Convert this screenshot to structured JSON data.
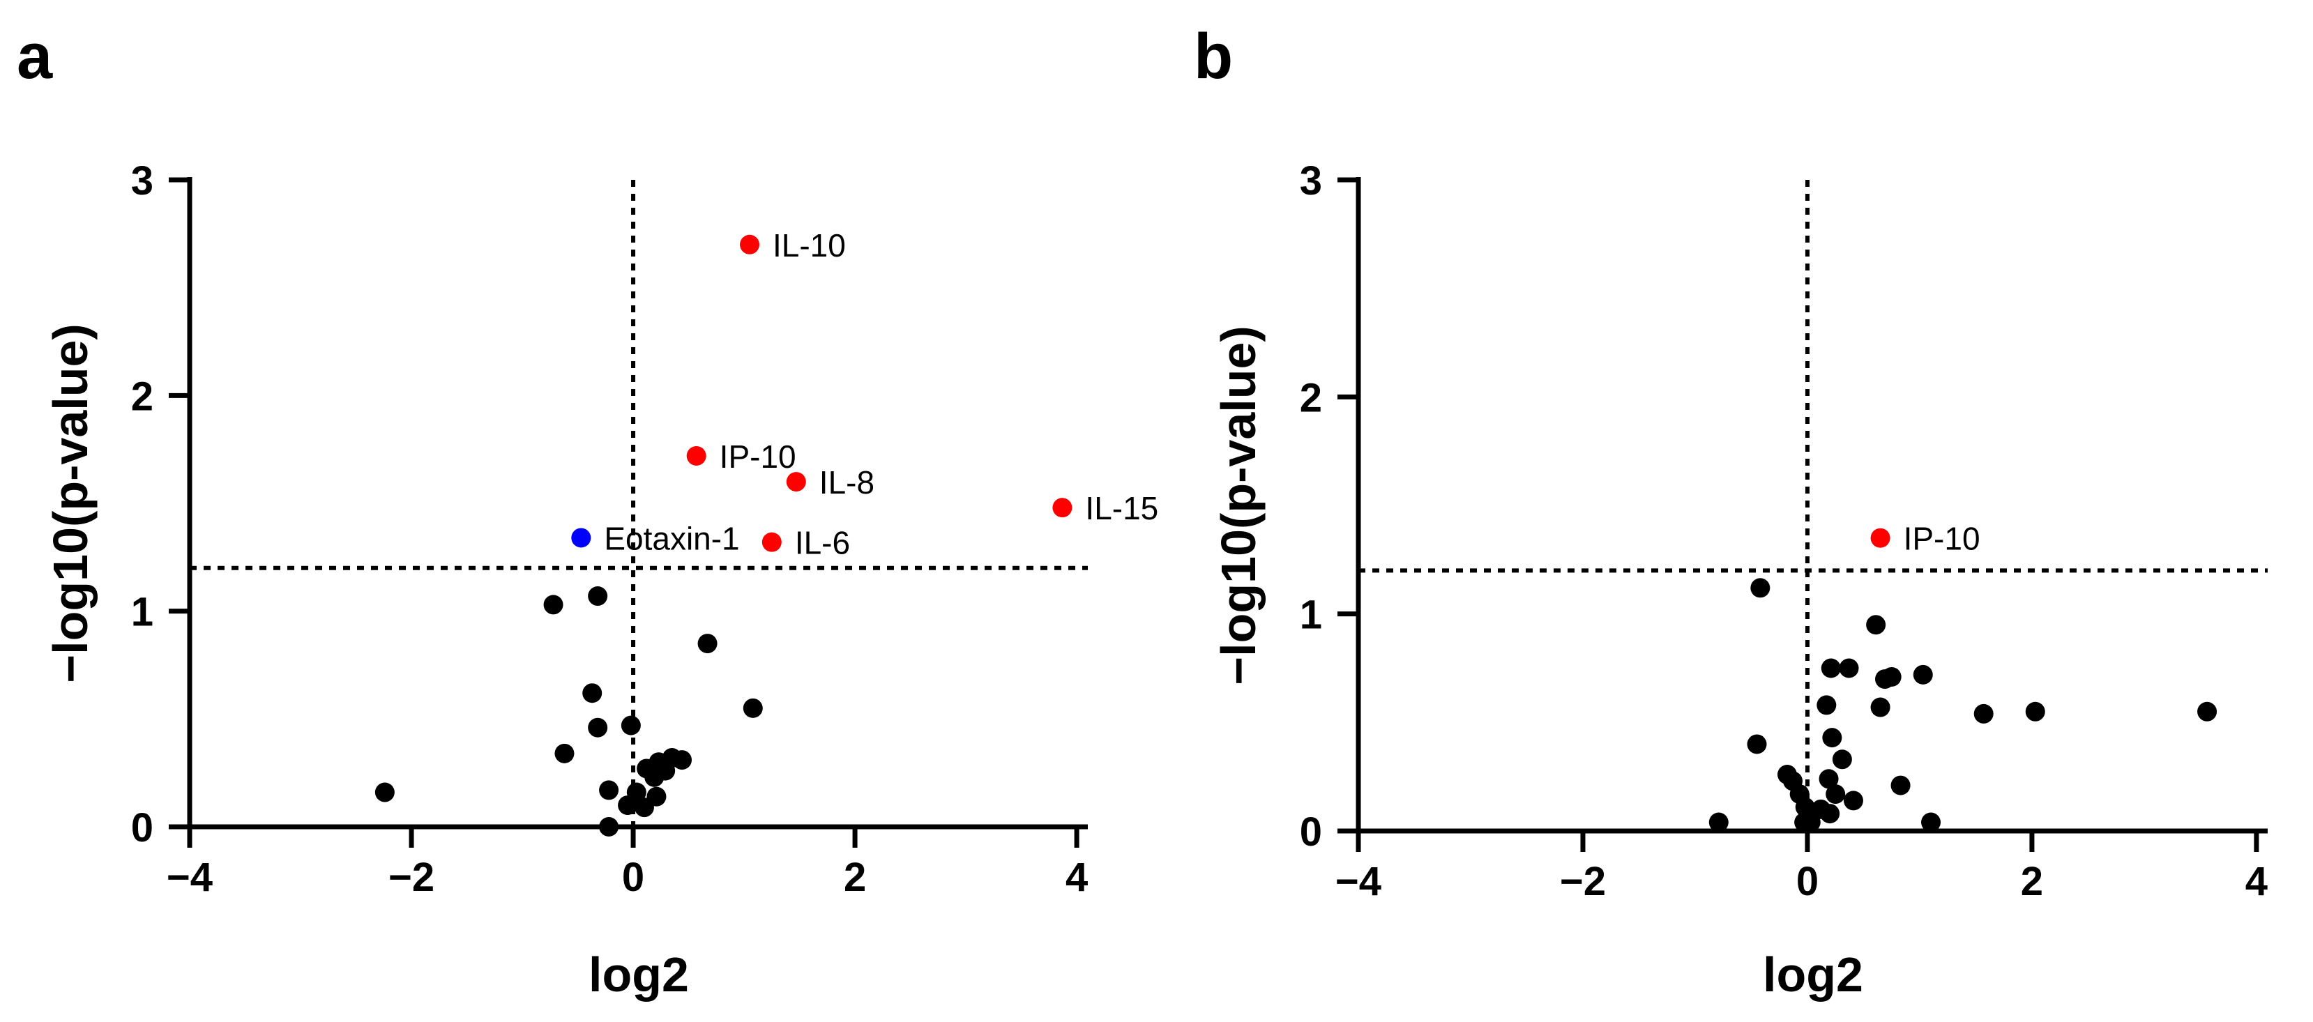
{
  "chart_data": [
    {
      "panel": "a",
      "type": "scatter",
      "xlabel": "log2",
      "ylabel": "−log10(p-value)",
      "xlim": [
        -4,
        4.1
      ],
      "ylim": [
        0,
        3
      ],
      "xticks": [
        -4,
        -2,
        0,
        2,
        4
      ],
      "xtick_labels": [
        "−4",
        "−2",
        "0",
        "2",
        "4"
      ],
      "yticks": [
        0,
        1,
        2,
        3
      ],
      "ytick_labels": [
        "0",
        "1",
        "2",
        "3"
      ],
      "threshold_y": 1.2,
      "threshold_x": 0,
      "colors": {
        "up": "#ff0000",
        "down": "#0000ff",
        "ns": "#000000"
      },
      "points": [
        {
          "x": 1.05,
          "y": 2.7,
          "group": "up",
          "label": "IL-10"
        },
        {
          "x": 0.57,
          "y": 1.72,
          "group": "up",
          "label": "IP-10"
        },
        {
          "x": 1.47,
          "y": 1.6,
          "group": "up",
          "label": "IL-8"
        },
        {
          "x": 3.87,
          "y": 1.48,
          "group": "up",
          "label": "IL-15"
        },
        {
          "x": 1.25,
          "y": 1.32,
          "group": "up",
          "label": "IL-6"
        },
        {
          "x": -0.47,
          "y": 1.34,
          "group": "down",
          "label": "Eotaxin-1"
        },
        {
          "x": -0.72,
          "y": 1.03,
          "group": "ns"
        },
        {
          "x": -0.32,
          "y": 1.07,
          "group": "ns"
        },
        {
          "x": 0.67,
          "y": 0.85,
          "group": "ns"
        },
        {
          "x": 1.08,
          "y": 0.55,
          "group": "ns"
        },
        {
          "x": -0.37,
          "y": 0.62,
          "group": "ns"
        },
        {
          "x": -0.32,
          "y": 0.46,
          "group": "ns"
        },
        {
          "x": -0.02,
          "y": 0.47,
          "group": "ns"
        },
        {
          "x": -0.62,
          "y": 0.34,
          "group": "ns"
        },
        {
          "x": -2.24,
          "y": 0.16,
          "group": "ns"
        },
        {
          "x": -0.22,
          "y": 0.17,
          "group": "ns"
        },
        {
          "x": -0.22,
          "y": 0.0,
          "group": "ns"
        },
        {
          "x": -0.05,
          "y": 0.1,
          "group": "ns"
        },
        {
          "x": 0.03,
          "y": 0.16,
          "group": "ns"
        },
        {
          "x": 0.12,
          "y": 0.27,
          "group": "ns"
        },
        {
          "x": 0.19,
          "y": 0.23,
          "group": "ns"
        },
        {
          "x": 0.23,
          "y": 0.3,
          "group": "ns"
        },
        {
          "x": 0.29,
          "y": 0.26,
          "group": "ns"
        },
        {
          "x": 0.35,
          "y": 0.32,
          "group": "ns"
        },
        {
          "x": 0.44,
          "y": 0.31,
          "group": "ns"
        },
        {
          "x": 0.1,
          "y": 0.09,
          "group": "ns"
        },
        {
          "x": 0.21,
          "y": 0.14,
          "group": "ns"
        }
      ]
    },
    {
      "panel": "b",
      "type": "scatter",
      "xlabel": "log2",
      "ylabel": "−log10(p-value)",
      "xlim": [
        -4,
        4.1
      ],
      "ylim": [
        0,
        3
      ],
      "xticks": [
        -4,
        -2,
        0,
        2,
        4
      ],
      "xtick_labels": [
        "−4",
        "−2",
        "0",
        "2",
        "4"
      ],
      "yticks": [
        0,
        1,
        2,
        3
      ],
      "ytick_labels": [
        "0",
        "1",
        "2",
        "3"
      ],
      "threshold_y": 1.2,
      "threshold_x": 0,
      "colors": {
        "up": "#ff0000",
        "down": "#0000ff",
        "ns": "#000000"
      },
      "points": [
        {
          "x": 0.65,
          "y": 1.35,
          "group": "up",
          "label": "IP-10"
        },
        {
          "x": -0.42,
          "y": 1.12,
          "group": "ns"
        },
        {
          "x": 0.61,
          "y": 0.95,
          "group": "ns"
        },
        {
          "x": 0.21,
          "y": 0.75,
          "group": "ns"
        },
        {
          "x": 0.37,
          "y": 0.75,
          "group": "ns"
        },
        {
          "x": 0.69,
          "y": 0.7,
          "group": "ns"
        },
        {
          "x": 0.75,
          "y": 0.71,
          "group": "ns"
        },
        {
          "x": 1.03,
          "y": 0.72,
          "group": "ns"
        },
        {
          "x": 0.17,
          "y": 0.58,
          "group": "ns"
        },
        {
          "x": 0.65,
          "y": 0.57,
          "group": "ns"
        },
        {
          "x": 1.57,
          "y": 0.54,
          "group": "ns"
        },
        {
          "x": 2.03,
          "y": 0.55,
          "group": "ns"
        },
        {
          "x": 3.56,
          "y": 0.55,
          "group": "ns"
        },
        {
          "x": -0.45,
          "y": 0.4,
          "group": "ns"
        },
        {
          "x": 0.22,
          "y": 0.43,
          "group": "ns"
        },
        {
          "x": 0.31,
          "y": 0.33,
          "group": "ns"
        },
        {
          "x": -0.18,
          "y": 0.26,
          "group": "ns"
        },
        {
          "x": -0.13,
          "y": 0.23,
          "group": "ns"
        },
        {
          "x": -0.07,
          "y": 0.17,
          "group": "ns"
        },
        {
          "x": 0.19,
          "y": 0.24,
          "group": "ns"
        },
        {
          "x": 0.25,
          "y": 0.17,
          "group": "ns"
        },
        {
          "x": 0.41,
          "y": 0.14,
          "group": "ns"
        },
        {
          "x": 0.83,
          "y": 0.21,
          "group": "ns"
        },
        {
          "x": -0.02,
          "y": 0.11,
          "group": "ns"
        },
        {
          "x": 0.12,
          "y": 0.1,
          "group": "ns"
        },
        {
          "x": 0.2,
          "y": 0.08,
          "group": "ns"
        },
        {
          "x": -0.03,
          "y": 0.04,
          "group": "ns"
        },
        {
          "x": 0.03,
          "y": 0.04,
          "group": "ns"
        },
        {
          "x": -0.79,
          "y": 0.04,
          "group": "ns"
        },
        {
          "x": 1.1,
          "y": 0.04,
          "group": "ns"
        }
      ]
    }
  ]
}
